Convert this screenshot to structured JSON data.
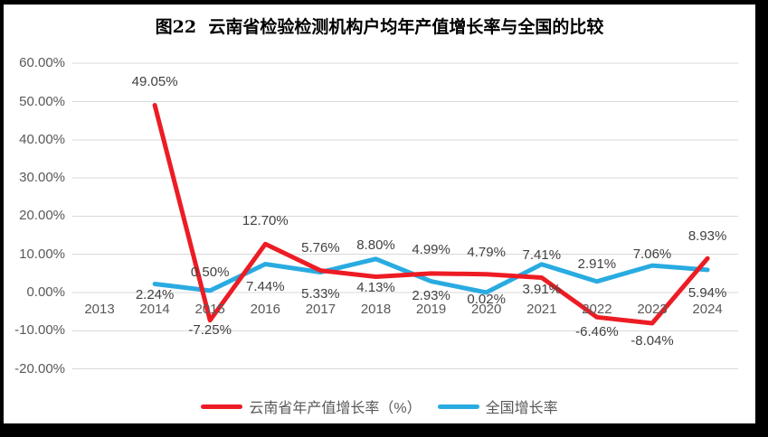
{
  "title": "图22  云南省检验检测机构户均年产值增长率与全国的比较",
  "chart_data": {
    "type": "line",
    "title": "图22  云南省检验检测机构户均年产值增长率与全国的比较",
    "categories": [
      "2013",
      "2014",
      "2015",
      "2016",
      "2017",
      "2018",
      "2019",
      "2020",
      "2021",
      "2022",
      "2023",
      "2024"
    ],
    "series": [
      {
        "name": "云南省年产值增长率（%）",
        "color": "#ED1C24",
        "values": [
          null,
          49.05,
          -7.25,
          12.7,
          5.76,
          4.13,
          4.99,
          4.79,
          3.91,
          -6.46,
          -8.04,
          8.93
        ],
        "label_dy": [
          null,
          -26,
          11,
          -25,
          -25,
          12,
          -26,
          -24,
          14,
          17,
          20,
          -24
        ]
      },
      {
        "name": "全国增长率",
        "color": "#29ABE1",
        "values": [
          null,
          2.24,
          0.5,
          7.44,
          5.33,
          8.8,
          2.93,
          0.02,
          7.41,
          2.91,
          7.06,
          5.94
        ],
        "label_dy": [
          null,
          12,
          -20,
          25,
          25,
          -15,
          16,
          8,
          -10,
          -19,
          -12,
          26
        ]
      }
    ],
    "ylim": [
      -20,
      60
    ],
    "y_tick_step": 10,
    "y_tick_labels": [
      "60.00%",
      "50.00%",
      "40.00%",
      "30.00%",
      "20.00%",
      "10.00%",
      "0.00%",
      "-10.00%",
      "-20.00%"
    ],
    "value_format": "0.00%",
    "grid": "horizontal-only",
    "gridline_color": "#D9D9D9",
    "axis_label_color": "#595959",
    "data_label_color": "#404040",
    "legend_position": "bottom",
    "line_width": 5
  },
  "frame": {
    "background": "#000000",
    "panel_background": "#ffffff"
  }
}
